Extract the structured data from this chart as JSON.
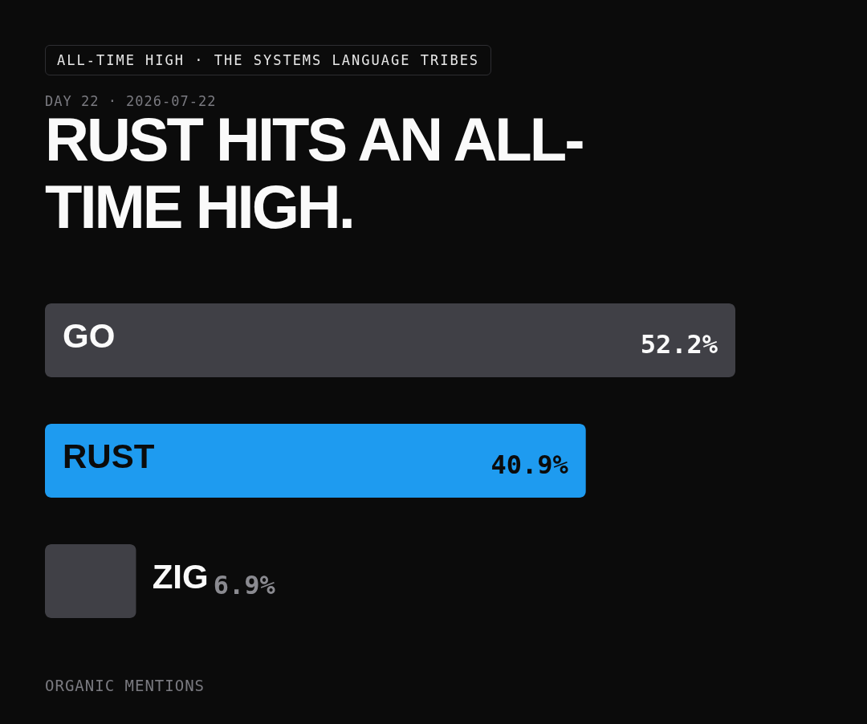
{
  "chart_data": {
    "type": "bar",
    "orientation": "horizontal",
    "title": "RUST HITS AN ALL-TIME HIGH.",
    "subtitle": "DAY 22 · 2026-07-22",
    "annotations": [
      "ALL-TIME HIGH · THE SYSTEMS LANGUAGE TRIBES",
      "ORGANIC MENTIONS"
    ],
    "categories": [
      "GO",
      "RUST",
      "ZIG"
    ],
    "values": [
      52.2,
      40.9,
      6.9
    ],
    "colors": [
      "#404046",
      "#1e9bf0",
      "#404046"
    ],
    "value_labels": [
      "52.2%",
      "40.9%",
      "6.9%"
    ]
  }
}
